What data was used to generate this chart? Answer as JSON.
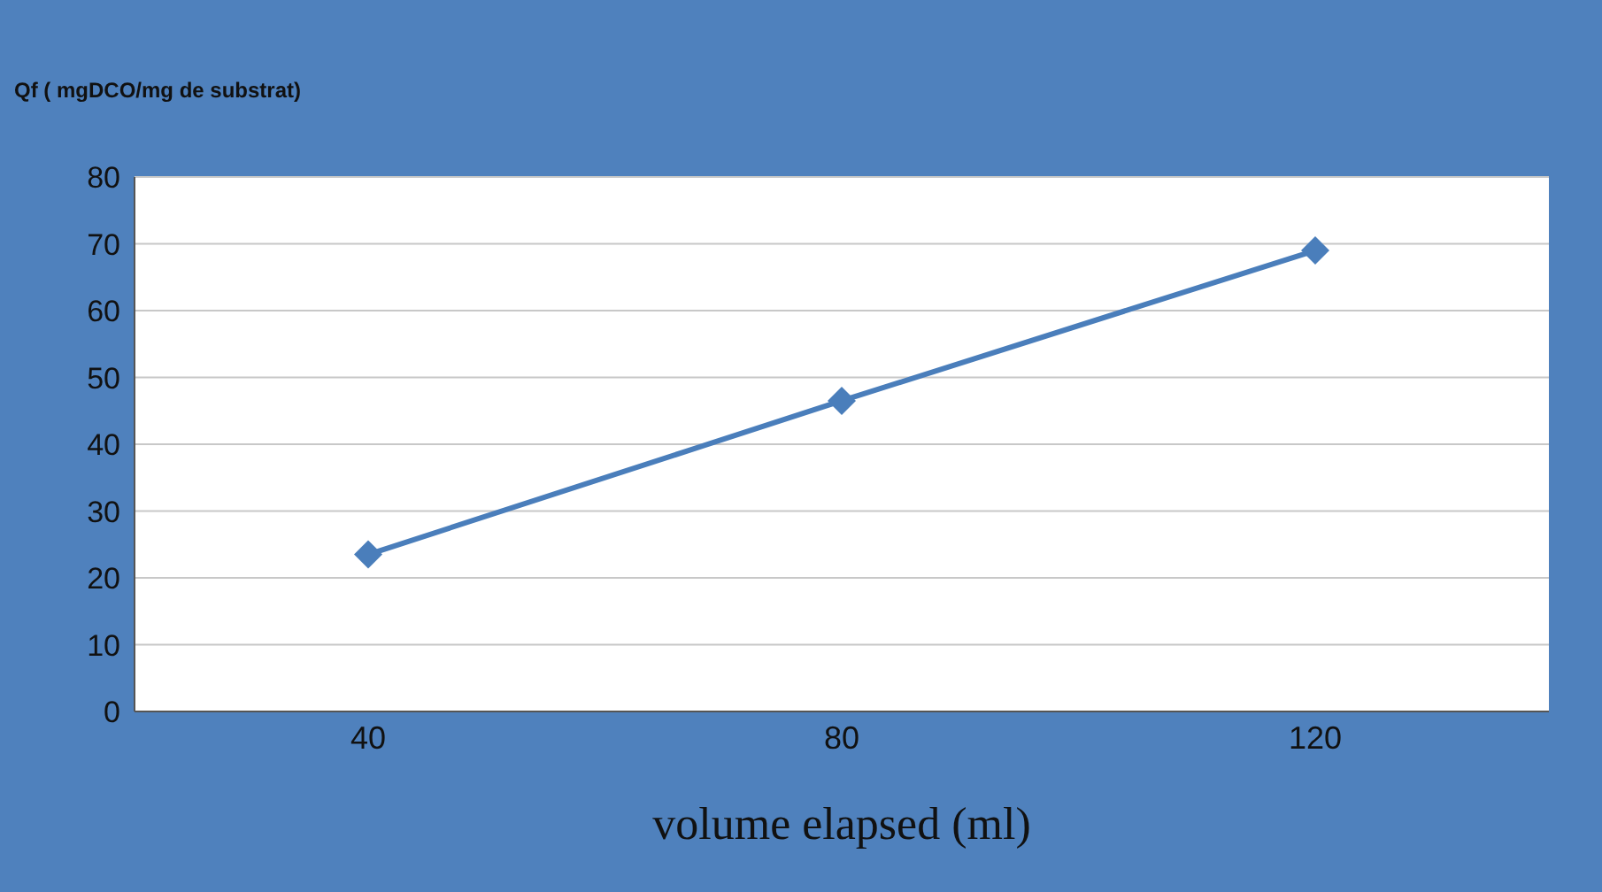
{
  "chart_data": {
    "type": "line",
    "ylabel": "Qf ( mgDCO/mg de substrat)",
    "xlabel": "volume elapsed (ml)",
    "categories": [
      "40",
      "80",
      "120"
    ],
    "series": [
      {
        "color": "#4a7ebb",
        "values": [
          23.5,
          46.5,
          69
        ]
      }
    ],
    "ylim": [
      0,
      80
    ],
    "yticks": [
      0,
      10,
      20,
      30,
      40,
      50,
      60,
      70,
      80
    ],
    "grid": "y",
    "marker": "diamond",
    "line_style": "solid"
  }
}
